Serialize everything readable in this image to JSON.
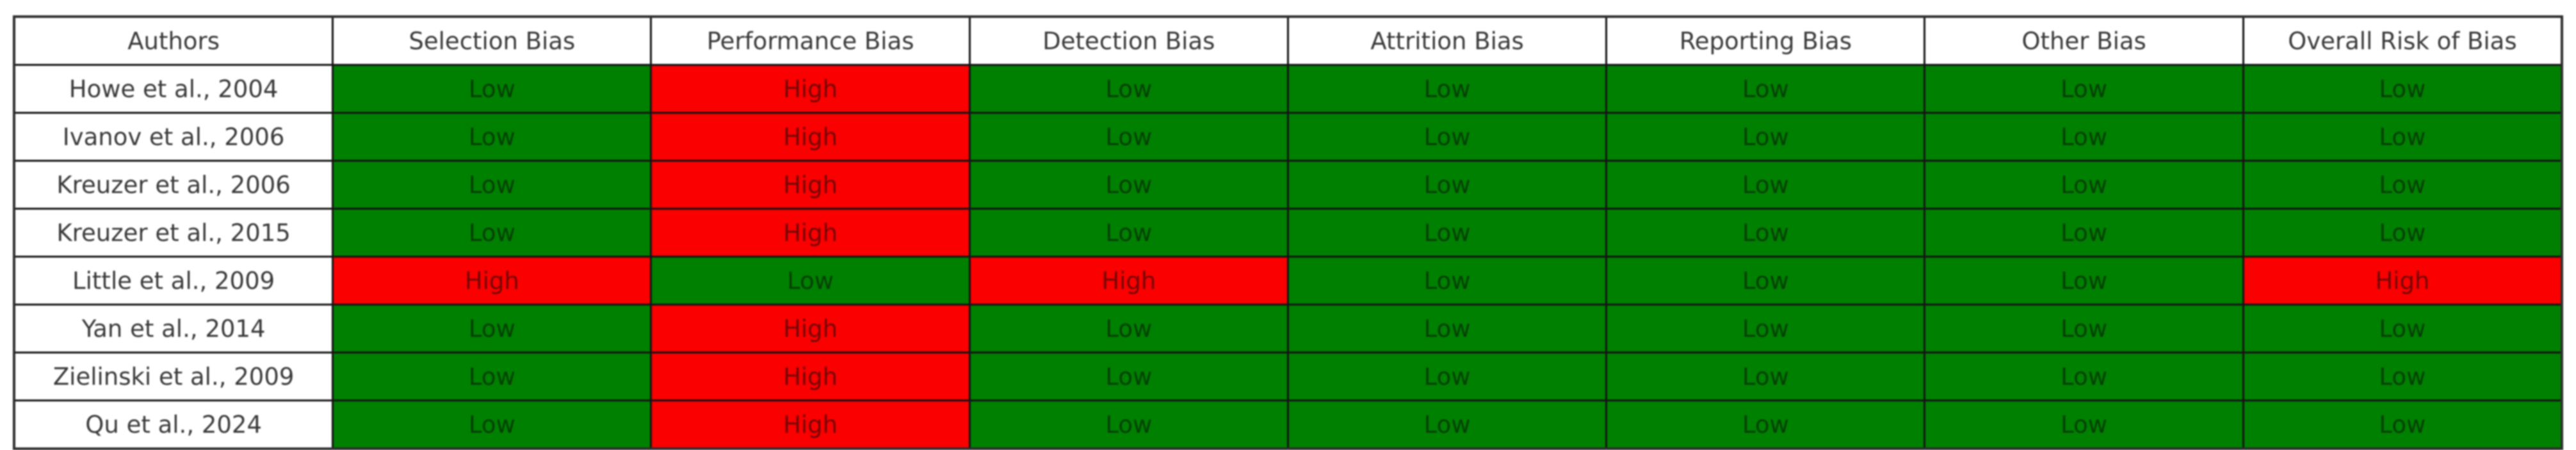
{
  "chart_data": {
    "type": "table",
    "columns": [
      "Authors",
      "Selection Bias",
      "Performance Bias",
      "Detection Bias",
      "Attrition Bias",
      "Reporting Bias",
      "Other Bias",
      "Overall Risk of Bias"
    ],
    "rows": [
      {
        "author": "Howe et al., 2004",
        "values": [
          "Low",
          "High",
          "Low",
          "Low",
          "Low",
          "Low",
          "Low"
        ]
      },
      {
        "author": "Ivanov et al., 2006",
        "values": [
          "Low",
          "High",
          "Low",
          "Low",
          "Low",
          "Low",
          "Low"
        ]
      },
      {
        "author": "Kreuzer et al., 2006",
        "values": [
          "Low",
          "High",
          "Low",
          "Low",
          "Low",
          "Low",
          "Low"
        ]
      },
      {
        "author": "Kreuzer et al., 2015",
        "values": [
          "Low",
          "High",
          "Low",
          "Low",
          "Low",
          "Low",
          "Low"
        ]
      },
      {
        "author": "Little et al., 2009",
        "values": [
          "High",
          "Low",
          "High",
          "Low",
          "Low",
          "Low",
          "High"
        ]
      },
      {
        "author": "Yan et al., 2014",
        "values": [
          "Low",
          "High",
          "Low",
          "Low",
          "Low",
          "Low",
          "Low"
        ]
      },
      {
        "author": "Zielinski et al., 2009",
        "values": [
          "Low",
          "High",
          "Low",
          "Low",
          "Low",
          "Low",
          "Low"
        ]
      },
      {
        "author": "Qu et al., 2024",
        "values": [
          "Low",
          "High",
          "Low",
          "Low",
          "Low",
          "Low",
          "Low"
        ]
      }
    ],
    "value_color_map": {
      "Low": "#008000",
      "High": "#fa0000"
    },
    "layout": {
      "grid": true,
      "header_background": "#ffffff",
      "border_color": "#141414"
    }
  }
}
